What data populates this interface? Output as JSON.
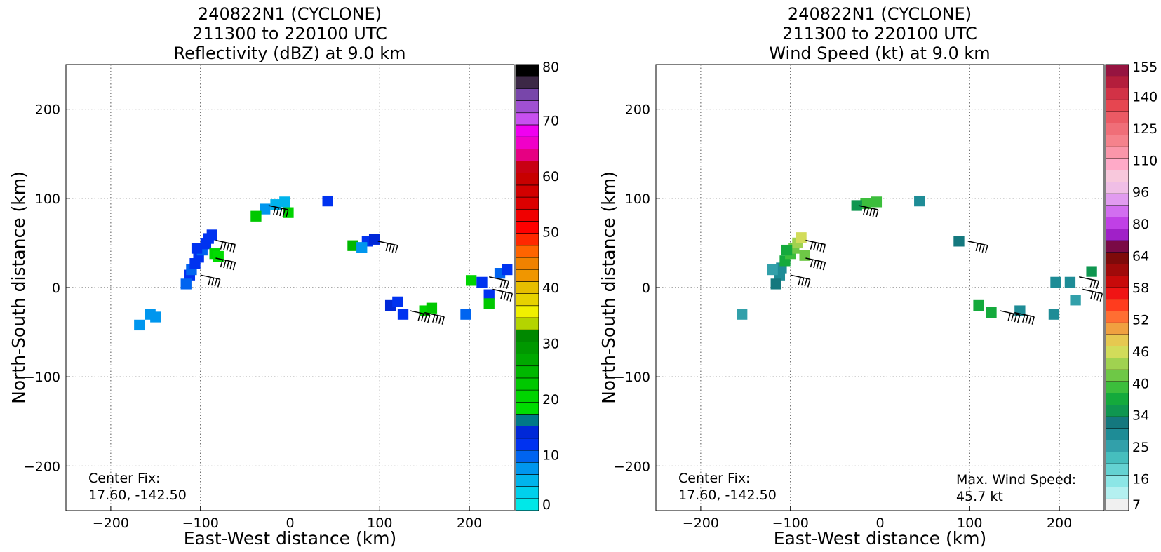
{
  "chart_data": [
    {
      "type": "heatmap",
      "title": [
        "240822N1 (CYCLONE)",
        "211300 to 220100 UTC",
        "Reflectivity (dBZ) at 9.0 km"
      ],
      "xlabel": "East-West distance (km)",
      "ylabel": "North-South distance (km)",
      "xlim": [
        -250,
        250
      ],
      "ylim": [
        -250,
        250
      ],
      "xticks": [
        -200,
        -100,
        0,
        100,
        200
      ],
      "yticks": [
        -200,
        -100,
        0,
        100,
        200
      ],
      "grid": true,
      "annotations": [
        "Center Fix:",
        "17.60, -142.50"
      ],
      "colorbar": {
        "min": 0,
        "max": 80,
        "ticks": [
          "0",
          "10",
          "20",
          "30",
          "40",
          "50",
          "60",
          "70",
          "80"
        ],
        "colors": [
          "#00e8e8",
          "#00d0ec",
          "#00b4ec",
          "#0096ee",
          "#0064f0",
          "#0032f0",
          "#0028d8",
          "#007888",
          "#00dc00",
          "#00d400",
          "#00c800",
          "#00b800",
          "#00a800",
          "#009800",
          "#008800",
          "#b4d400",
          "#f0f000",
          "#e6d200",
          "#e6be00",
          "#f09600",
          "#f08200",
          "#ff6400",
          "#ff2800",
          "#ff0000",
          "#f00000",
          "#dc0000",
          "#d20000",
          "#c80000",
          "#c80014",
          "#e60082",
          "#f000c8",
          "#f000f0",
          "#c850f0",
          "#a050d2",
          "#7846aa",
          "#3c2846",
          "#000000"
        ]
      },
      "cells": [
        {
          "x": -112,
          "y": 14,
          "value": 12
        },
        {
          "x": -110,
          "y": 20,
          "value": 9
        },
        {
          "x": -106,
          "y": 27,
          "value": 11
        },
        {
          "x": -102,
          "y": 34,
          "value": 12
        },
        {
          "x": -98,
          "y": 42,
          "value": 10
        },
        {
          "x": -94,
          "y": 49,
          "value": 12
        },
        {
          "x": -91,
          "y": 55,
          "value": 11
        },
        {
          "x": -87,
          "y": 59,
          "value": 12
        },
        {
          "x": -104,
          "y": 44,
          "value": 11
        },
        {
          "x": -84,
          "y": 38,
          "value": 20
        },
        {
          "x": -80,
          "y": 35,
          "value": 19
        },
        {
          "x": -116,
          "y": 4,
          "value": 10
        },
        {
          "x": -156,
          "y": -30,
          "value": 7
        },
        {
          "x": -150,
          "y": -33,
          "value": 8
        },
        {
          "x": -168,
          "y": -42,
          "value": 8
        },
        {
          "x": -6,
          "y": 96,
          "value": 5
        },
        {
          "x": -16,
          "y": 93,
          "value": 6
        },
        {
          "x": -28,
          "y": 88,
          "value": 7
        },
        {
          "x": -2,
          "y": 84,
          "value": 20
        },
        {
          "x": -38,
          "y": 80,
          "value": 22
        },
        {
          "x": 42,
          "y": 97,
          "value": 12
        },
        {
          "x": 86,
          "y": 52,
          "value": 12
        },
        {
          "x": 94,
          "y": 54,
          "value": 13
        },
        {
          "x": 70,
          "y": 47,
          "value": 24
        },
        {
          "x": 80,
          "y": 45,
          "value": 8
        },
        {
          "x": 112,
          "y": -20,
          "value": 13
        },
        {
          "x": 120,
          "y": -16,
          "value": 12
        },
        {
          "x": 126,
          "y": -30,
          "value": 11
        },
        {
          "x": 150,
          "y": -26,
          "value": 20
        },
        {
          "x": 158,
          "y": -23,
          "value": 22
        },
        {
          "x": 196,
          "y": -30,
          "value": 10
        },
        {
          "x": 202,
          "y": 8,
          "value": 20
        },
        {
          "x": 214,
          "y": 6,
          "value": 12
        },
        {
          "x": 222,
          "y": -8,
          "value": 11
        },
        {
          "x": 222,
          "y": -18,
          "value": 22
        },
        {
          "x": 234,
          "y": 16,
          "value": 10
        },
        {
          "x": 242,
          "y": 20,
          "value": 12
        }
      ],
      "barbs": [
        {
          "x": -83,
          "y": 53,
          "speed_kt": 45
        },
        {
          "x": -83,
          "y": 33,
          "speed_kt": 45
        },
        {
          "x": -100,
          "y": 14,
          "speed_kt": 40
        },
        {
          "x": -24,
          "y": 92,
          "speed_kt": 45
        },
        {
          "x": 98,
          "y": 52,
          "speed_kt": 35
        },
        {
          "x": 134,
          "y": -26,
          "speed_kt": 40
        },
        {
          "x": 150,
          "y": -28,
          "speed_kt": 40
        },
        {
          "x": 222,
          "y": 12,
          "speed_kt": 30
        },
        {
          "x": 226,
          "y": -2,
          "speed_kt": 40
        }
      ]
    },
    {
      "type": "heatmap",
      "title": [
        "240822N1 (CYCLONE)",
        "211300 to 220100 UTC",
        "Wind Speed (kt) at 9.0 km"
      ],
      "xlabel": "East-West distance (km)",
      "ylabel": "North-South distance (km)",
      "xlim": [
        -250,
        250
      ],
      "ylim": [
        -250,
        250
      ],
      "xticks": [
        -200,
        -100,
        0,
        100,
        200
      ],
      "yticks": [
        -200,
        -100,
        0,
        100,
        200
      ],
      "grid": true,
      "annotations": [
        "Center Fix:",
        "17.60, -142.50",
        "Max. Wind Speed:",
        "45.7 kt"
      ],
      "colorbar": {
        "ticks": [
          "7",
          "16",
          "25",
          "34",
          "40",
          "46",
          "52",
          "58",
          "64",
          "80",
          "96",
          "110",
          "125",
          "140",
          "155"
        ],
        "colors": [
          "#f0f0f0",
          "#b4f0f0",
          "#8ce6e6",
          "#64d2d2",
          "#46bebe",
          "#32a0aa",
          "#1e8c96",
          "#14787e",
          "#0f9650",
          "#14aa3c",
          "#3cbe3c",
          "#6ec846",
          "#a0d250",
          "#d2dc5a",
          "#e6c850",
          "#f0a040",
          "#ff6e32",
          "#ff3c1e",
          "#f01414",
          "#c80a0a",
          "#a00a0a",
          "#7e0a0a",
          "#7a0a46",
          "#a020c8",
          "#c040e6",
          "#d26ef0",
          "#e19bf0",
          "#f0bee6",
          "#f8c8dc",
          "#ffaac8",
          "#fa96aa",
          "#f5828c",
          "#f06e78",
          "#eb5a64",
          "#e64650",
          "#d23246",
          "#b41e3c",
          "#961440"
        ]
      },
      "cells": [
        {
          "x": -112,
          "y": 14,
          "value": 28
        },
        {
          "x": -110,
          "y": 22,
          "value": 30
        },
        {
          "x": -106,
          "y": 30,
          "value": 36
        },
        {
          "x": -100,
          "y": 38,
          "value": 40
        },
        {
          "x": -96,
          "y": 44,
          "value": 42
        },
        {
          "x": -92,
          "y": 50,
          "value": 43
        },
        {
          "x": -88,
          "y": 56,
          "value": 45
        },
        {
          "x": -104,
          "y": 42,
          "value": 38
        },
        {
          "x": -84,
          "y": 36,
          "value": 41
        },
        {
          "x": -116,
          "y": 4,
          "value": 33
        },
        {
          "x": -120,
          "y": 20,
          "value": 26
        },
        {
          "x": -154,
          "y": -30,
          "value": 24
        },
        {
          "x": -4,
          "y": 96,
          "value": 39
        },
        {
          "x": -16,
          "y": 94,
          "value": 40
        },
        {
          "x": -26,
          "y": 92,
          "value": 35
        },
        {
          "x": 44,
          "y": 97,
          "value": 27
        },
        {
          "x": 88,
          "y": 52,
          "value": 32
        },
        {
          "x": 110,
          "y": -20,
          "value": 37
        },
        {
          "x": 124,
          "y": -28,
          "value": 38
        },
        {
          "x": 156,
          "y": -26,
          "value": 28
        },
        {
          "x": 194,
          "y": -30,
          "value": 30
        },
        {
          "x": 196,
          "y": 6,
          "value": 27
        },
        {
          "x": 212,
          "y": 6,
          "value": 28
        },
        {
          "x": 218,
          "y": -14,
          "value": 26
        },
        {
          "x": 236,
          "y": 18,
          "value": 35
        }
      ],
      "barbs": [
        {
          "x": -83,
          "y": 53,
          "speed_kt": 45
        },
        {
          "x": -83,
          "y": 33,
          "speed_kt": 45
        },
        {
          "x": -100,
          "y": 14,
          "speed_kt": 40
        },
        {
          "x": -24,
          "y": 92,
          "speed_kt": 45
        },
        {
          "x": 98,
          "y": 52,
          "speed_kt": 35
        },
        {
          "x": 134,
          "y": -26,
          "speed_kt": 40
        },
        {
          "x": 150,
          "y": -28,
          "speed_kt": 40
        },
        {
          "x": 222,
          "y": 12,
          "speed_kt": 30
        },
        {
          "x": 226,
          "y": -2,
          "speed_kt": 40
        }
      ]
    }
  ]
}
